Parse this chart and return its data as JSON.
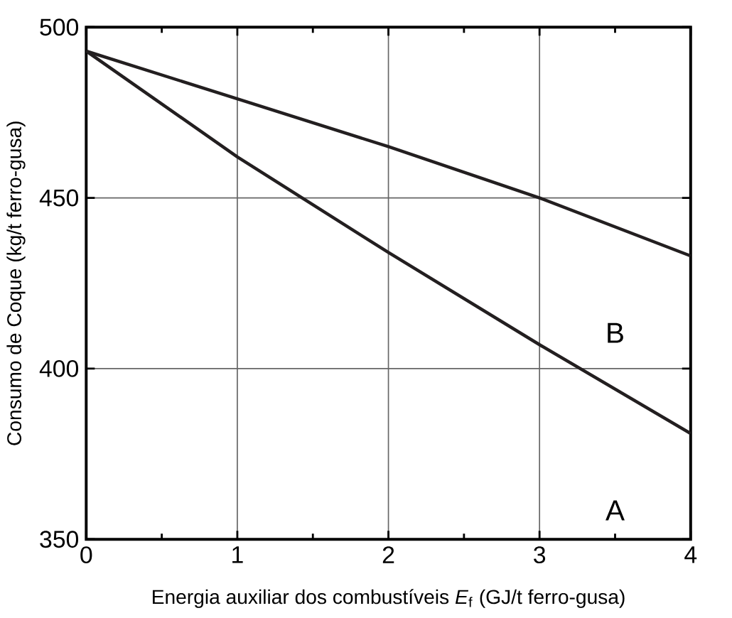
{
  "chart_data": {
    "type": "line",
    "xlabel": "Energia auxiliar dos combustíveis *E*$_{f}$ (GJ/t ferro-gusa)",
    "ylabel": "Consumo de Coque (kg/t ferro-gusa)",
    "x": [
      0,
      1,
      2,
      3,
      4
    ],
    "series": [
      {
        "color": "#231f20",
        "values": [
          493,
          462,
          434,
          407,
          381
        ]
      },
      {
        "color": "#231f20",
        "values": [
          493,
          479,
          465,
          450,
          433
        ]
      }
    ],
    "xlim": [
      0,
      4
    ],
    "ylim": [
      350,
      500
    ],
    "xticks": [
      0,
      1,
      2,
      3,
      4
    ],
    "yticks": [
      350,
      400,
      450,
      500
    ],
    "grid": true,
    "marker": "none",
    "line_style": "solid",
    "annotations": [
      "A",
      "B"
    ]
  }
}
